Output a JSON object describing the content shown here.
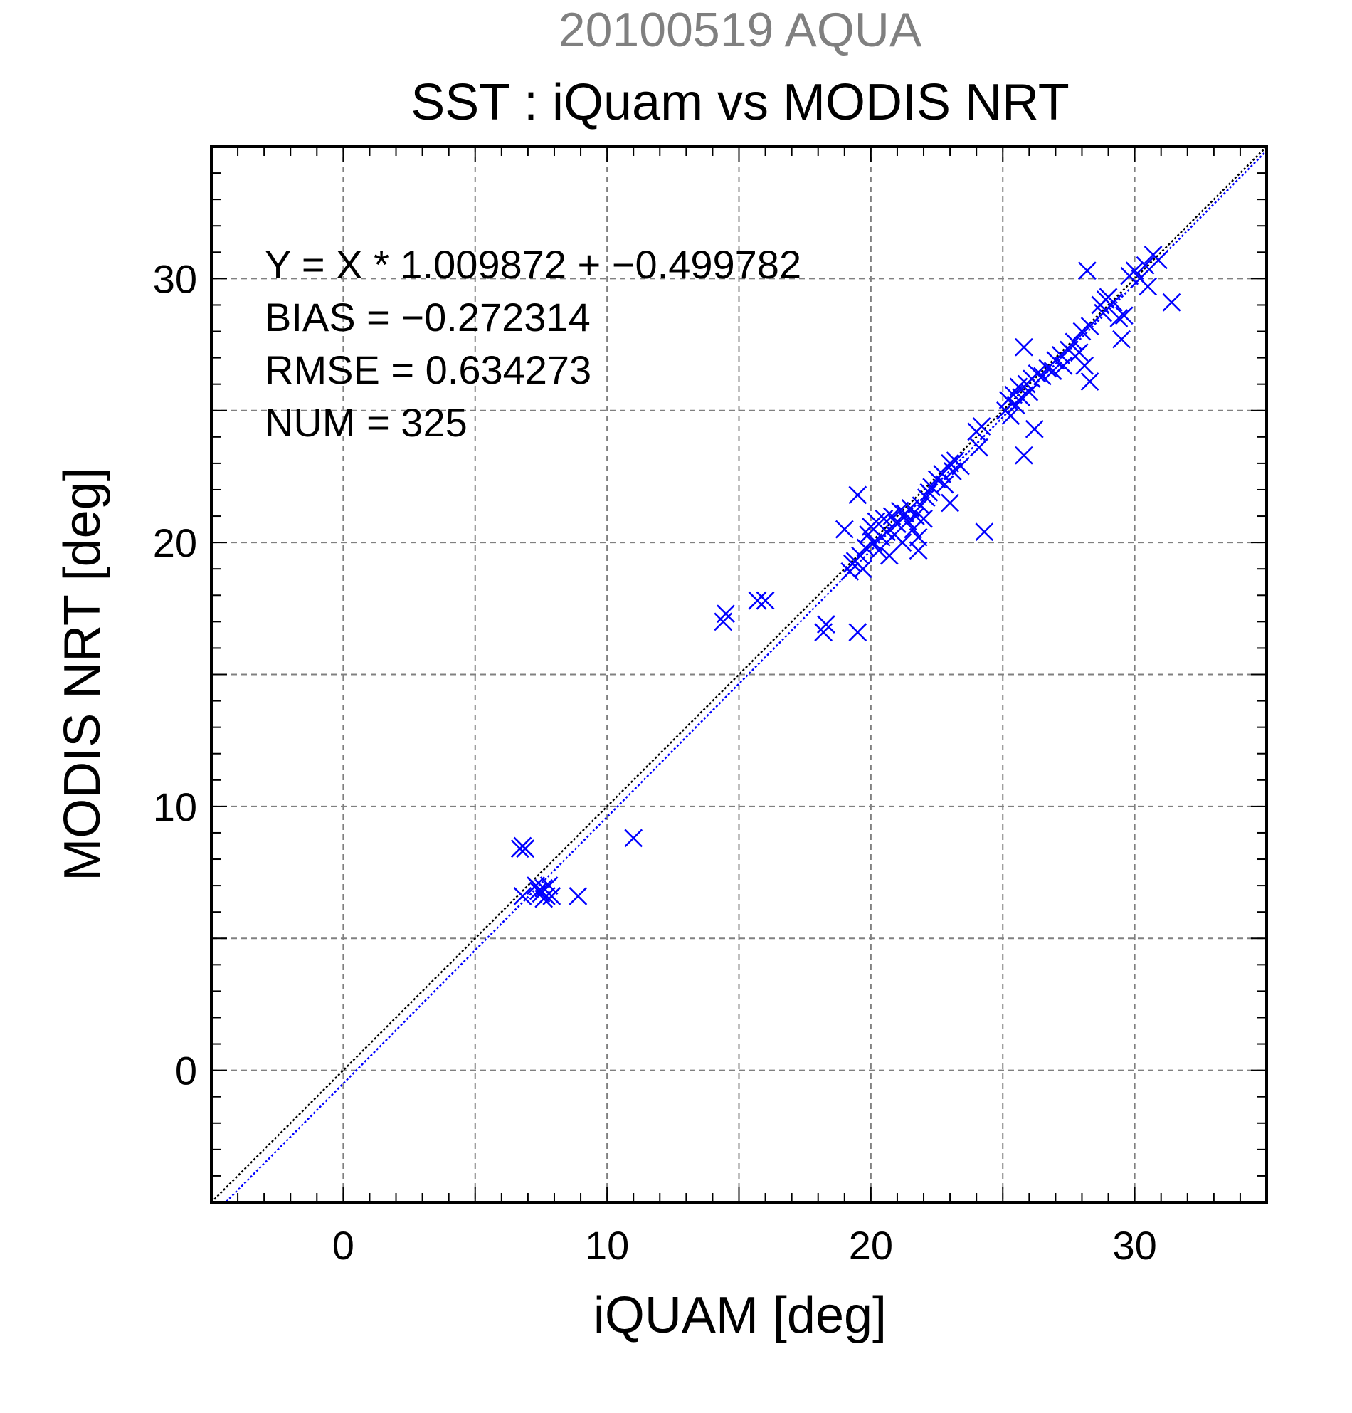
{
  "chart_data": {
    "type": "scatter",
    "supertitle": "20100519 AQUA",
    "title": "SST : iQuam vs MODIS NRT",
    "xlabel": "iQUAM [deg]",
    "ylabel": "MODIS NRT [deg]",
    "xlim": [
      -5,
      35
    ],
    "ylim": [
      -5,
      35
    ],
    "xticks": [
      0,
      10,
      20,
      30
    ],
    "yticks": [
      0,
      10,
      20,
      30
    ],
    "xtick_labels": [
      "0",
      "10",
      "20",
      "30"
    ],
    "ytick_labels": [
      "0",
      "10",
      "20",
      "30"
    ],
    "grid": true,
    "grid_step": 5,
    "minor_tick_step": 1,
    "colors": {
      "points": "#0000ff",
      "fit_line": "#0000ff",
      "identity_line": "#000000",
      "supertitle": "#808080",
      "grid": "#808080"
    },
    "marker": "x",
    "stats": {
      "equation": "Y = X * 1.009872 + −0.499782",
      "bias": "BIAS = −0.272314",
      "rmse": "RMSE = 0.634273",
      "num": "NUM = 325"
    },
    "fit": {
      "slope": 1.009872,
      "intercept": -0.499782
    },
    "points": [
      [
        6.7,
        8.4
      ],
      [
        6.8,
        8.5
      ],
      [
        6.9,
        8.4
      ],
      [
        6.8,
        6.6
      ],
      [
        7.3,
        7.0
      ],
      [
        7.4,
        6.8
      ],
      [
        7.5,
        6.7
      ],
      [
        7.6,
        6.9
      ],
      [
        7.7,
        6.6
      ],
      [
        7.8,
        7.0
      ],
      [
        7.6,
        6.5
      ],
      [
        7.9,
        6.6
      ],
      [
        8.9,
        6.6
      ],
      [
        11.0,
        8.8
      ],
      [
        14.4,
        17.0
      ],
      [
        14.5,
        17.3
      ],
      [
        15.7,
        17.8
      ],
      [
        16.0,
        17.8
      ],
      [
        18.2,
        16.6
      ],
      [
        18.3,
        16.9
      ],
      [
        19.5,
        16.6
      ],
      [
        19.5,
        21.8
      ],
      [
        19.2,
        18.9
      ],
      [
        19.3,
        19.2
      ],
      [
        19.4,
        19.3
      ],
      [
        19.0,
        20.5
      ],
      [
        19.6,
        19.5
      ],
      [
        19.7,
        19.0
      ],
      [
        19.8,
        19.8
      ],
      [
        19.9,
        20.3
      ],
      [
        20.0,
        20.6
      ],
      [
        20.1,
        20.0
      ],
      [
        20.2,
        20.8
      ],
      [
        20.3,
        19.7
      ],
      [
        20.4,
        20.2
      ],
      [
        20.5,
        20.9
      ],
      [
        20.6,
        20.4
      ],
      [
        20.7,
        19.5
      ],
      [
        20.8,
        21.0
      ],
      [
        20.9,
        20.3
      ],
      [
        21.0,
        20.7
      ],
      [
        21.1,
        21.2
      ],
      [
        21.2,
        20.0
      ],
      [
        21.3,
        21.1
      ],
      [
        21.4,
        20.8
      ],
      [
        21.5,
        21.3
      ],
      [
        21.6,
        20.5
      ],
      [
        21.7,
        21.0
      ],
      [
        21.8,
        19.7
      ],
      [
        21.8,
        20.2
      ],
      [
        21.9,
        21.4
      ],
      [
        22.0,
        20.9
      ],
      [
        22.1,
        21.7
      ],
      [
        22.2,
        21.9
      ],
      [
        22.3,
        22.1
      ],
      [
        22.5,
        22.4
      ],
      [
        22.7,
        22.6
      ],
      [
        22.8,
        22.2
      ],
      [
        23.0,
        23.0
      ],
      [
        23.1,
        22.7
      ],
      [
        23.0,
        21.5
      ],
      [
        23.2,
        23.1
      ],
      [
        23.4,
        22.9
      ],
      [
        24.0,
        24.2
      ],
      [
        24.1,
        23.6
      ],
      [
        24.2,
        24.4
      ],
      [
        24.3,
        20.4
      ],
      [
        25.1,
        25.0
      ],
      [
        25.2,
        25.4
      ],
      [
        25.3,
        24.8
      ],
      [
        25.4,
        25.6
      ],
      [
        25.5,
        25.2
      ],
      [
        25.6,
        25.9
      ],
      [
        25.7,
        25.5
      ],
      [
        25.8,
        27.4
      ],
      [
        25.8,
        23.3
      ],
      [
        25.9,
        26.0
      ],
      [
        26.0,
        25.7
      ],
      [
        26.1,
        26.2
      ],
      [
        26.2,
        24.3
      ],
      [
        26.3,
        26.4
      ],
      [
        26.5,
        26.3
      ],
      [
        26.7,
        26.6
      ],
      [
        26.9,
        26.5
      ],
      [
        27.0,
        26.9
      ],
      [
        27.2,
        27.1
      ],
      [
        27.3,
        26.7
      ],
      [
        27.5,
        27.3
      ],
      [
        27.7,
        27.6
      ],
      [
        27.9,
        27.2
      ],
      [
        28.1,
        26.7
      ],
      [
        28.2,
        30.3
      ],
      [
        28.3,
        26.1
      ],
      [
        28.0,
        28.0
      ],
      [
        28.3,
        28.2
      ],
      [
        28.7,
        29.0
      ],
      [
        28.8,
        28.7
      ],
      [
        28.9,
        29.2
      ],
      [
        29.0,
        29.3
      ],
      [
        29.2,
        29.1
      ],
      [
        29.4,
        28.5
      ],
      [
        29.5,
        27.7
      ],
      [
        29.6,
        28.6
      ],
      [
        29.8,
        30.1
      ],
      [
        30.0,
        30.3
      ],
      [
        30.2,
        30.0
      ],
      [
        30.4,
        30.5
      ],
      [
        30.5,
        29.7
      ],
      [
        30.7,
        30.9
      ],
      [
        30.9,
        30.7
      ],
      [
        31.4,
        29.1
      ]
    ]
  }
}
